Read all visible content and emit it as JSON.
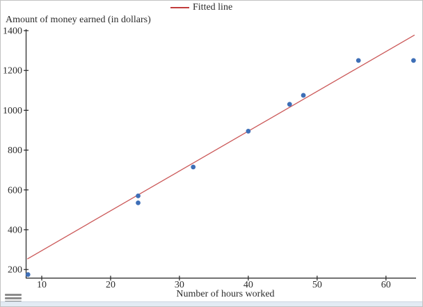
{
  "chart_data": {
    "type": "scatter",
    "title": "",
    "xlabel": "Number of hours worked",
    "ylabel": "Amount of money earned (in dollars)",
    "legend_entries": [
      {
        "label": "Fitted line",
        "color": "#c23b3b",
        "marker": "line"
      }
    ],
    "legend_position": "top-center",
    "grid": false,
    "x_ticks": [
      10,
      20,
      30,
      40,
      50,
      60
    ],
    "y_ticks": [
      200,
      400,
      600,
      800,
      1000,
      1200,
      1400
    ],
    "xlim": [
      7.7,
      64.6
    ],
    "ylim": [
      160,
      1410
    ],
    "points": [
      {
        "x": 8,
        "y": 175
      },
      {
        "x": 24,
        "y": 535
      },
      {
        "x": 24,
        "y": 570
      },
      {
        "x": 32,
        "y": 715
      },
      {
        "x": 40,
        "y": 895
      },
      {
        "x": 46,
        "y": 1030
      },
      {
        "x": 48,
        "y": 1075
      },
      {
        "x": 56,
        "y": 1250
      },
      {
        "x": 64,
        "y": 1250
      }
    ],
    "fitted_line": {
      "slope": 20,
      "intercept": 95,
      "x_start": 7.9,
      "x_end": 64.15
    },
    "colors": {
      "point": "#3e6fb7",
      "fitted_line": "#c23b3b",
      "axis": "#222222",
      "tick_text": "#2b2b2b"
    }
  },
  "footer": {
    "menu_icon": "hamburger"
  }
}
